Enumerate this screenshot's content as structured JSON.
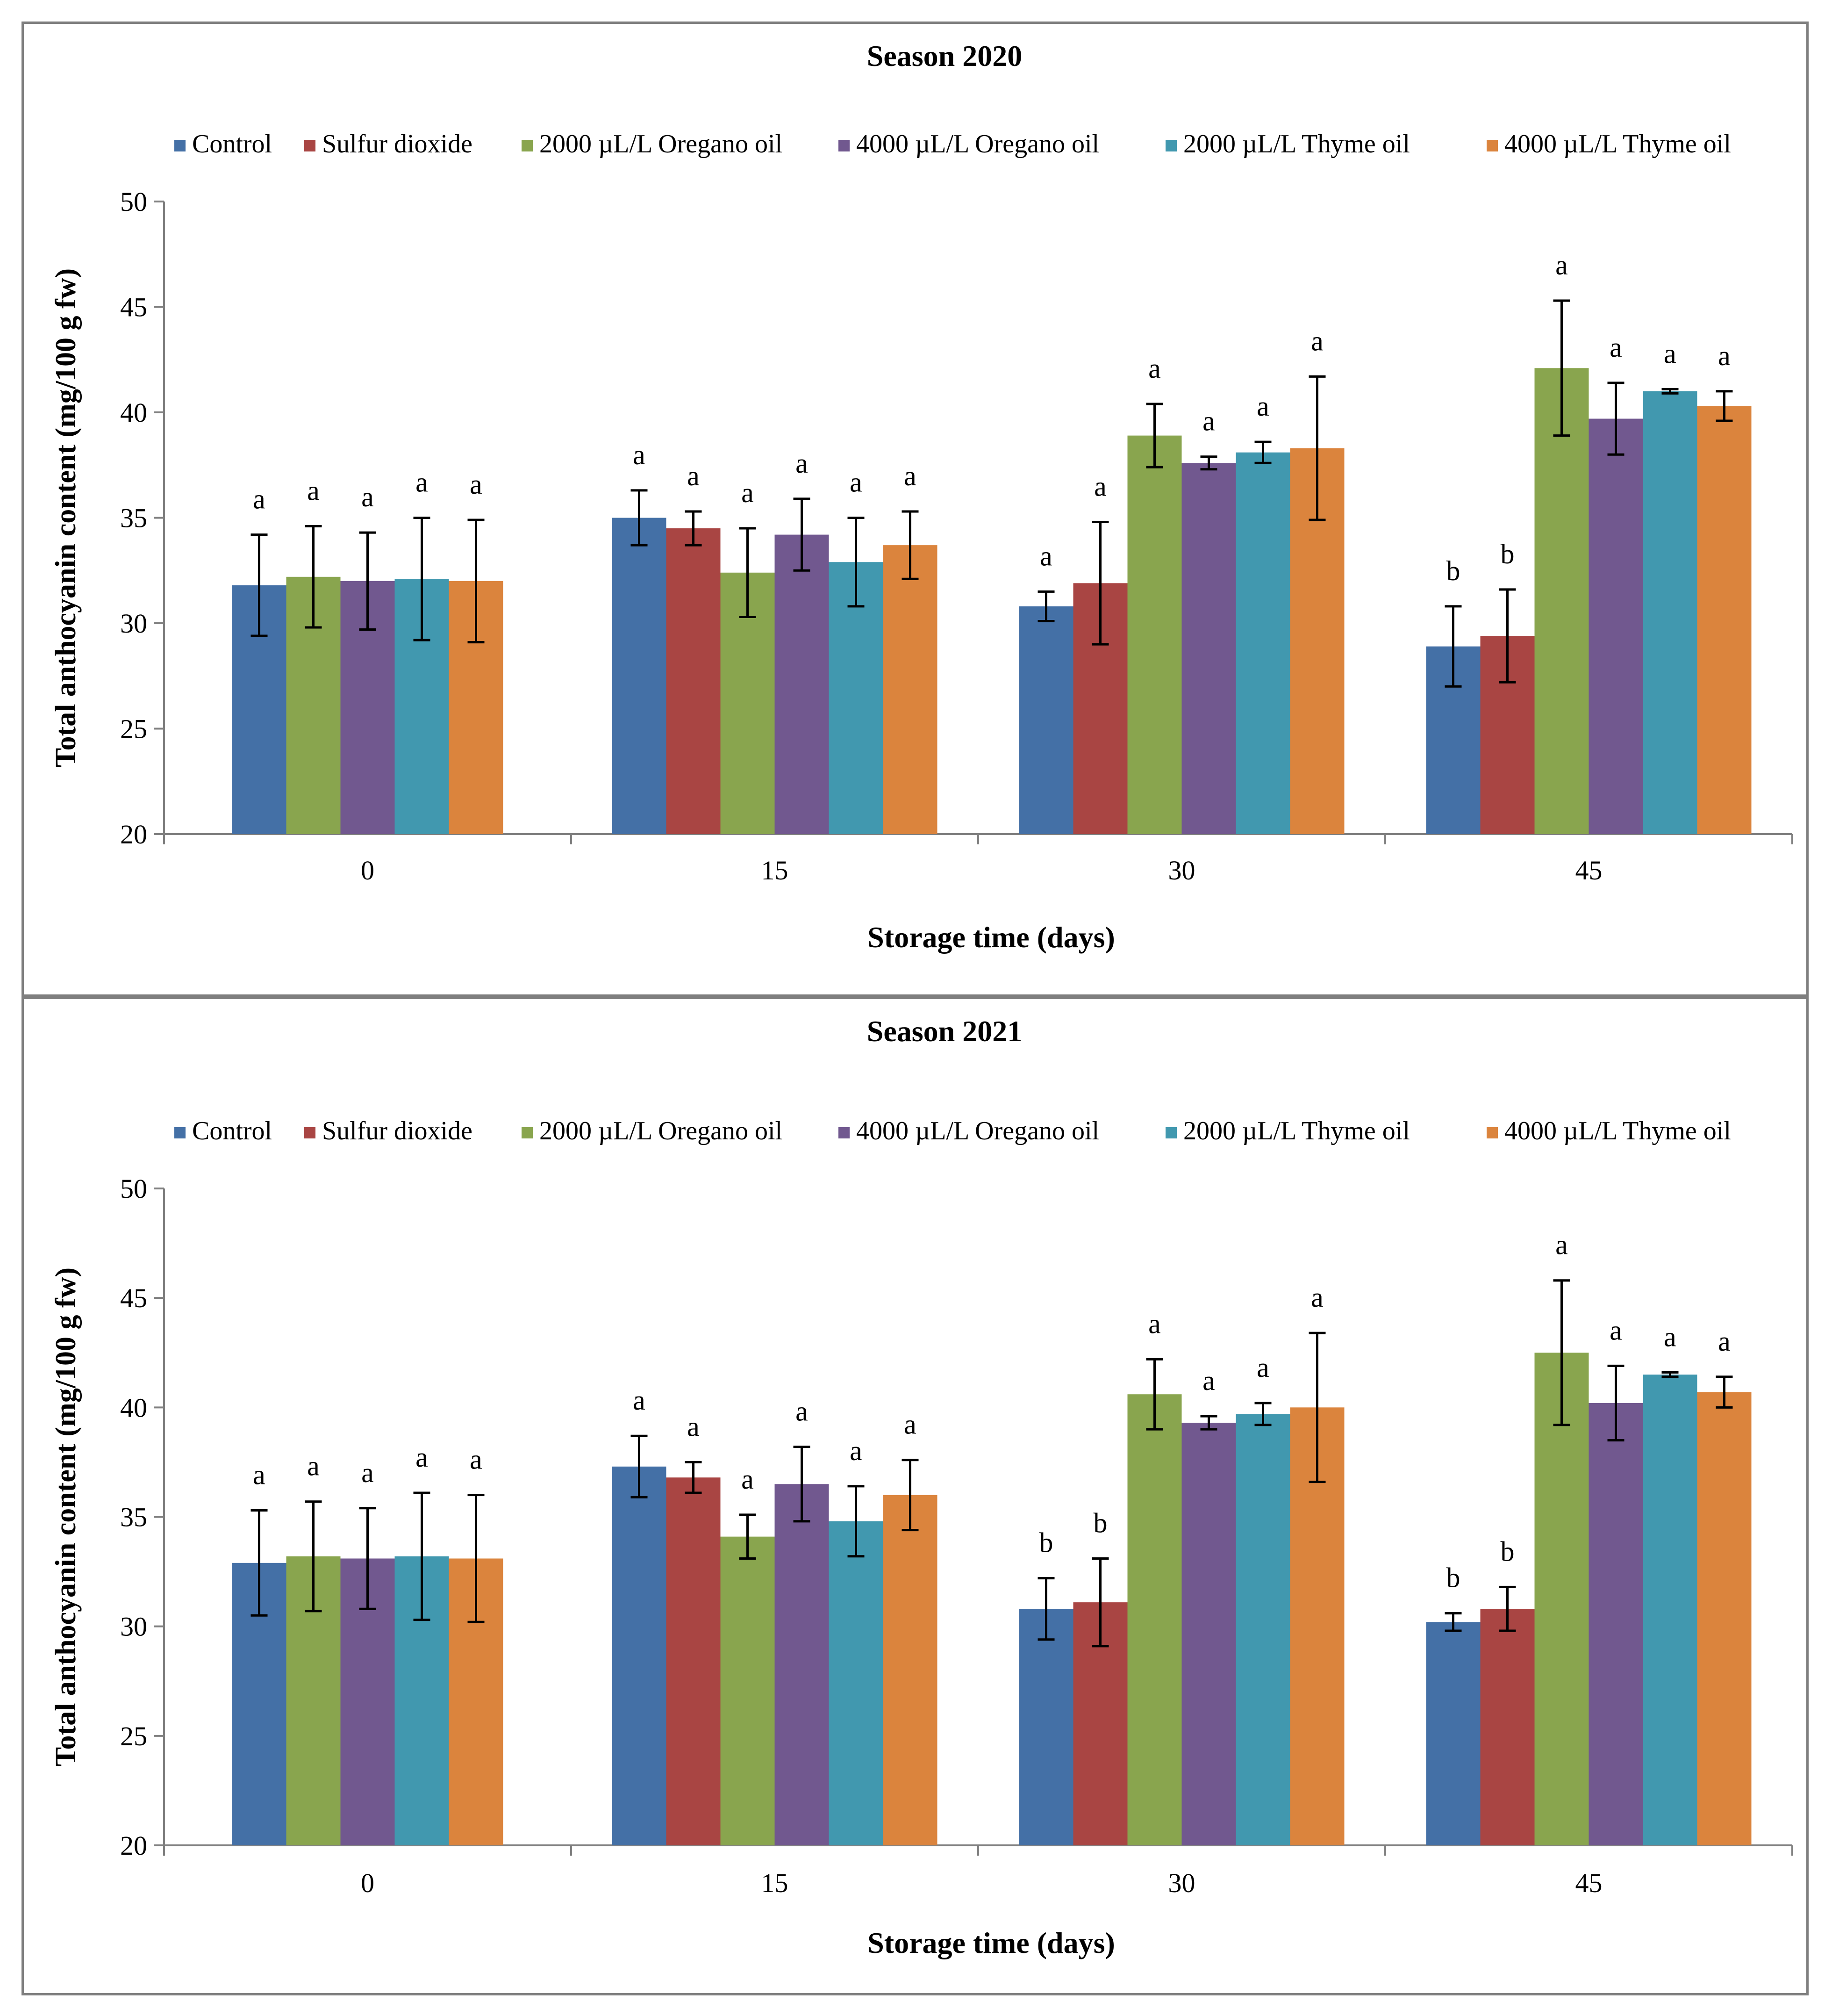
{
  "chart_data": [
    {
      "type": "bar",
      "title": "Season 2020",
      "xlabel": "Storage time (days)",
      "ylabel": "Total anthocyanin content (mg/100 g fw)",
      "ylim": [
        20,
        50
      ],
      "yticks": [
        20,
        25,
        30,
        35,
        40,
        45,
        50
      ],
      "categories": [
        "0",
        "15",
        "30",
        "45"
      ],
      "legend_position": "top",
      "series": [
        {
          "name": "Control",
          "color": "#4470A6",
          "values": [
            31.8,
            35.0,
            30.8,
            28.9
          ],
          "errors": [
            2.4,
            1.3,
            0.7,
            1.9
          ],
          "letters": [
            "a",
            "a",
            "a",
            "b"
          ]
        },
        {
          "name": "Sulfur dioxide",
          "color": "#A94543",
          "values": [
            null,
            34.5,
            31.9,
            29.4
          ],
          "errors": [
            null,
            0.8,
            2.9,
            2.2
          ],
          "letters": [
            "",
            "a",
            "a",
            "b"
          ]
        },
        {
          "name": "2000 µL/L Oregano oil",
          "color": "#89A54E",
          "values": [
            32.2,
            32.4,
            38.9,
            42.1
          ],
          "errors": [
            2.4,
            2.1,
            1.5,
            3.2
          ],
          "letters": [
            "a",
            "a",
            "a",
            "a"
          ]
        },
        {
          "name": "4000 µL/L Oregano oil",
          "color": "#71588F",
          "values": [
            32.0,
            34.2,
            37.6,
            39.7
          ],
          "errors": [
            2.3,
            1.7,
            0.3,
            1.7
          ],
          "letters": [
            "a",
            "a",
            "a",
            "a"
          ]
        },
        {
          "name": "2000 µL/L Thyme oil",
          "color": "#4198AF",
          "values": [
            32.1,
            32.9,
            38.1,
            41.0
          ],
          "errors": [
            2.9,
            2.1,
            0.5,
            0.1
          ],
          "letters": [
            "a",
            "a",
            "a",
            "a"
          ]
        },
        {
          "name": "4000 µL/L Thyme oil",
          "color": "#DB843D",
          "values": [
            32.0,
            33.7,
            38.3,
            40.3
          ],
          "errors": [
            2.9,
            1.6,
            3.4,
            0.7
          ],
          "letters": [
            "a",
            "a",
            "a",
            "a"
          ]
        }
      ]
    },
    {
      "type": "bar",
      "title": "Season 2021",
      "xlabel": "Storage time (days)",
      "ylabel": "Total anthocyanin content (mg/100 g fw)",
      "ylim": [
        20,
        50
      ],
      "yticks": [
        20,
        25,
        30,
        35,
        40,
        45,
        50
      ],
      "categories": [
        "0",
        "15",
        "30",
        "45"
      ],
      "legend_position": "top",
      "series": [
        {
          "name": "Control",
          "color": "#4470A6",
          "values": [
            32.9,
            37.3,
            30.8,
            30.2
          ],
          "errors": [
            2.4,
            1.4,
            1.4,
            0.4
          ],
          "letters": [
            "a",
            "a",
            "b",
            "b"
          ]
        },
        {
          "name": "Sulfur dioxide",
          "color": "#A94543",
          "values": [
            null,
            36.8,
            31.1,
            30.8
          ],
          "errors": [
            null,
            0.7,
            2.0,
            1.0
          ],
          "letters": [
            "",
            "a",
            "b",
            "b"
          ]
        },
        {
          "name": "2000 µL/L Oregano oil",
          "color": "#89A54E",
          "values": [
            33.2,
            34.1,
            40.6,
            42.5
          ],
          "errors": [
            2.5,
            1.0,
            1.6,
            3.3
          ],
          "letters": [
            "a",
            "a",
            "a",
            "a"
          ]
        },
        {
          "name": "4000 µL/L Oregano oil",
          "color": "#71588F",
          "values": [
            33.1,
            36.5,
            39.3,
            40.2
          ],
          "errors": [
            2.3,
            1.7,
            0.3,
            1.7
          ],
          "letters": [
            "a",
            "a",
            "a",
            "a"
          ]
        },
        {
          "name": "2000 µL/L Thyme oil",
          "color": "#4198AF",
          "values": [
            33.2,
            34.8,
            39.7,
            41.5
          ],
          "errors": [
            2.9,
            1.6,
            0.5,
            0.1
          ],
          "letters": [
            "a",
            "a",
            "a",
            "a"
          ]
        },
        {
          "name": "4000 µL/L Thyme oil",
          "color": "#DB843D",
          "values": [
            33.1,
            36.0,
            40.0,
            40.7
          ],
          "errors": [
            2.9,
            1.6,
            3.4,
            0.7
          ],
          "letters": [
            "a",
            "a",
            "a",
            "a"
          ]
        }
      ]
    }
  ]
}
